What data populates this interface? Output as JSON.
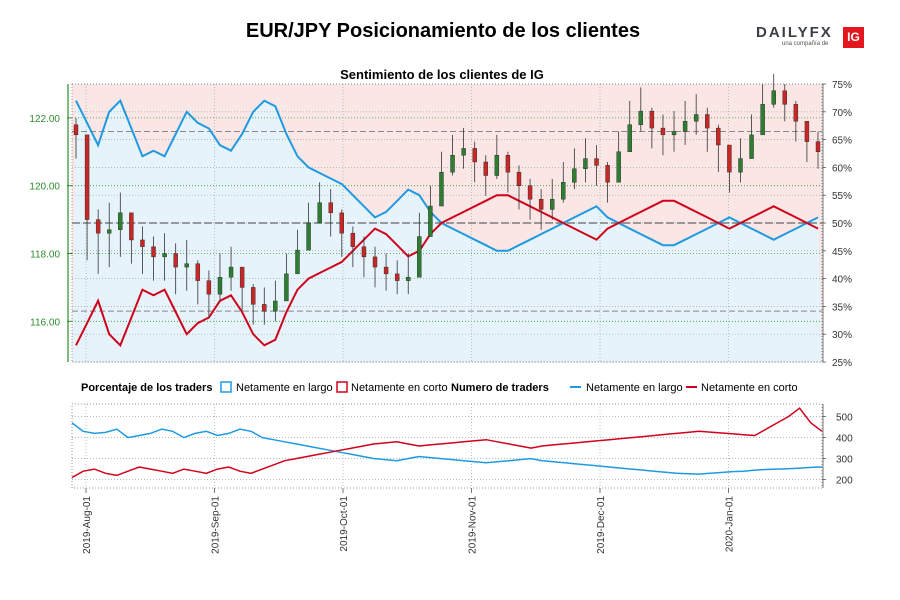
{
  "title": "EUR/JPY Posicionamiento de los clientes",
  "logo": {
    "text": "DAILYFX",
    "subtitle": "una compañía de",
    "badge": "IG"
  },
  "colors": {
    "long": "#1f9ae0",
    "short": "#d0021b",
    "price_axis": "#2e8b2e",
    "bg_long": "#e6f3fb",
    "bg_short": "#fbe6e6",
    "candle_up": "#2e7d32",
    "candle_down": "#c62828"
  },
  "legend": {
    "pct_title": "Porcentaje de los traders",
    "pct_long": "Netamente en largo",
    "pct_short": "Netamente en corto",
    "num_title": "Numero de traders",
    "num_long": "Netamente en largo",
    "num_short": "Netamente en corto"
  },
  "chart_data": [
    {
      "type": "line",
      "title": "Sentimiento de los clientes de IG",
      "price_axis": {
        "ticks": [
          "116.00",
          "118.00",
          "120.00",
          "122.00"
        ],
        "range": [
          114.8,
          123.0
        ]
      },
      "pct_axis": {
        "ticks": [
          "25%",
          "30%",
          "35%",
          "40%",
          "45%",
          "50%",
          "55%",
          "60%",
          "65%",
          "70%",
          "75%"
        ],
        "range": [
          25,
          75
        ]
      },
      "reference_lines": {
        "pct": 50,
        "price_high": 121.6,
        "price_low": 116.3
      },
      "x_labels": [
        "2019-Aug-01",
        "2019-Sep-01",
        "2019-Oct-01",
        "2019-Nov-01",
        "2019-Dec-01",
        "2020-Jan-01"
      ],
      "price_series": {
        "name": "EUR/JPY",
        "closes": [
          121.5,
          119.0,
          118.6,
          118.7,
          119.2,
          118.4,
          118.2,
          117.9,
          118.0,
          117.6,
          117.7,
          117.2,
          116.8,
          117.3,
          117.6,
          117.0,
          116.5,
          116.3,
          116.6,
          117.4,
          118.1,
          118.9,
          119.5,
          119.2,
          118.6,
          118.2,
          117.9,
          117.6,
          117.4,
          117.2,
          117.3,
          118.5,
          119.4,
          120.4,
          120.9,
          121.1,
          120.7,
          120.3,
          120.9,
          120.4,
          120.0,
          119.6,
          119.3,
          119.6,
          120.1,
          120.5,
          120.8,
          120.6,
          120.1,
          121.0,
          121.8,
          122.2,
          121.7,
          121.5,
          121.6,
          121.9,
          122.1,
          121.7,
          121.2,
          120.4,
          120.8,
          121.5,
          122.4,
          122.8,
          122.4,
          121.9,
          121.3,
          121.0
        ],
        "lows": [
          120.8,
          117.8,
          117.4,
          117.6,
          117.9,
          117.7,
          117.4,
          117.2,
          117.2,
          116.8,
          116.9,
          116.5,
          116.1,
          116.6,
          116.9,
          116.3,
          115.9,
          115.9,
          116.0,
          116.8,
          117.5,
          118.3,
          118.9,
          118.5,
          117.9,
          117.6,
          117.3,
          117.0,
          116.9,
          116.8,
          116.8,
          117.8,
          118.9,
          119.8,
          120.3,
          120.5,
          120.1,
          119.7,
          120.2,
          119.8,
          119.3,
          119.0,
          118.7,
          119.0,
          119.5,
          119.9,
          120.1,
          120.0,
          119.5,
          120.3,
          121.1,
          121.6,
          121.1,
          120.9,
          121.0,
          121.2,
          121.5,
          121.0,
          120.4,
          119.8,
          120.1,
          120.8,
          121.7,
          122.3,
          121.9,
          121.3,
          120.7,
          120.5
        ],
        "highs": [
          122.0,
          119.8,
          119.3,
          119.5,
          119.8,
          119.1,
          118.8,
          118.5,
          118.6,
          118.3,
          118.4,
          117.8,
          117.5,
          118.0,
          118.2,
          117.6,
          117.1,
          117.0,
          117.2,
          118.0,
          118.7,
          119.5,
          120.1,
          119.9,
          119.3,
          118.8,
          118.5,
          118.2,
          118.0,
          117.8,
          118.0,
          119.2,
          120.0,
          121.0,
          121.5,
          121.7,
          121.3,
          120.9,
          121.5,
          121.0,
          120.6,
          120.2,
          119.9,
          120.2,
          120.7,
          121.1,
          121.4,
          121.2,
          120.7,
          121.6,
          122.5,
          122.9,
          122.3,
          122.1,
          122.2,
          122.5,
          122.7,
          122.3,
          121.8,
          121.0,
          121.4,
          122.1,
          123.0,
          123.3,
          123.0,
          122.5,
          121.9,
          121.6
        ]
      },
      "series": [
        {
          "name": "Netamente en largo",
          "values": [
            72,
            68,
            64,
            70,
            72,
            67,
            62,
            63,
            62,
            66,
            70,
            68,
            67,
            64,
            63,
            66,
            70,
            72,
            71,
            66,
            62,
            60,
            59,
            58,
            57,
            55,
            53,
            51,
            52,
            54,
            56,
            55,
            52,
            50,
            49,
            48,
            47,
            46,
            45,
            45,
            46,
            47,
            48,
            49,
            50,
            51,
            52,
            53,
            51,
            50,
            49,
            48,
            47,
            46,
            46,
            47,
            48,
            49,
            50,
            51,
            50,
            49,
            48,
            47,
            48,
            49,
            50,
            51
          ]
        },
        {
          "name": "Netamente en corto",
          "values": [
            28,
            32,
            36,
            30,
            28,
            33,
            38,
            37,
            38,
            34,
            30,
            32,
            33,
            36,
            37,
            34,
            30,
            28,
            29,
            34,
            38,
            40,
            41,
            42,
            43,
            45,
            47,
            49,
            48,
            46,
            44,
            45,
            48,
            50,
            51,
            52,
            53,
            54,
            55,
            55,
            54,
            53,
            52,
            51,
            50,
            49,
            48,
            47,
            49,
            50,
            51,
            52,
            53,
            54,
            54,
            53,
            52,
            51,
            50,
            49,
            50,
            51,
            52,
            53,
            52,
            51,
            50,
            49
          ]
        }
      ]
    },
    {
      "type": "line",
      "title": "Numero de traders",
      "y_axis": {
        "ticks": [
          "200",
          "300",
          "400",
          "500"
        ],
        "range": [
          160,
          560
        ]
      },
      "series": [
        {
          "name": "Netamente en largo",
          "values": [
            470,
            430,
            420,
            425,
            440,
            400,
            410,
            420,
            440,
            430,
            400,
            420,
            430,
            410,
            420,
            440,
            430,
            400,
            390,
            380,
            370,
            360,
            350,
            340,
            330,
            320,
            310,
            300,
            295,
            290,
            300,
            310,
            305,
            300,
            295,
            290,
            285,
            280,
            285,
            290,
            295,
            300,
            290,
            285,
            280,
            275,
            270,
            265,
            260,
            255,
            250,
            245,
            240,
            235,
            230,
            228,
            226,
            230,
            234,
            238,
            240,
            245,
            248,
            250,
            252,
            255,
            258,
            260
          ]
        },
        {
          "name": "Netamente en corto",
          "values": [
            210,
            240,
            250,
            230,
            220,
            240,
            260,
            250,
            240,
            230,
            250,
            240,
            230,
            250,
            260,
            240,
            230,
            250,
            270,
            290,
            300,
            310,
            320,
            330,
            340,
            350,
            360,
            370,
            375,
            380,
            370,
            360,
            365,
            370,
            375,
            380,
            385,
            390,
            380,
            370,
            360,
            350,
            360,
            365,
            370,
            375,
            380,
            385,
            390,
            395,
            400,
            405,
            410,
            415,
            420,
            425,
            430,
            426,
            422,
            418,
            414,
            410,
            440,
            470,
            500,
            540,
            470,
            430
          ]
        }
      ]
    }
  ]
}
